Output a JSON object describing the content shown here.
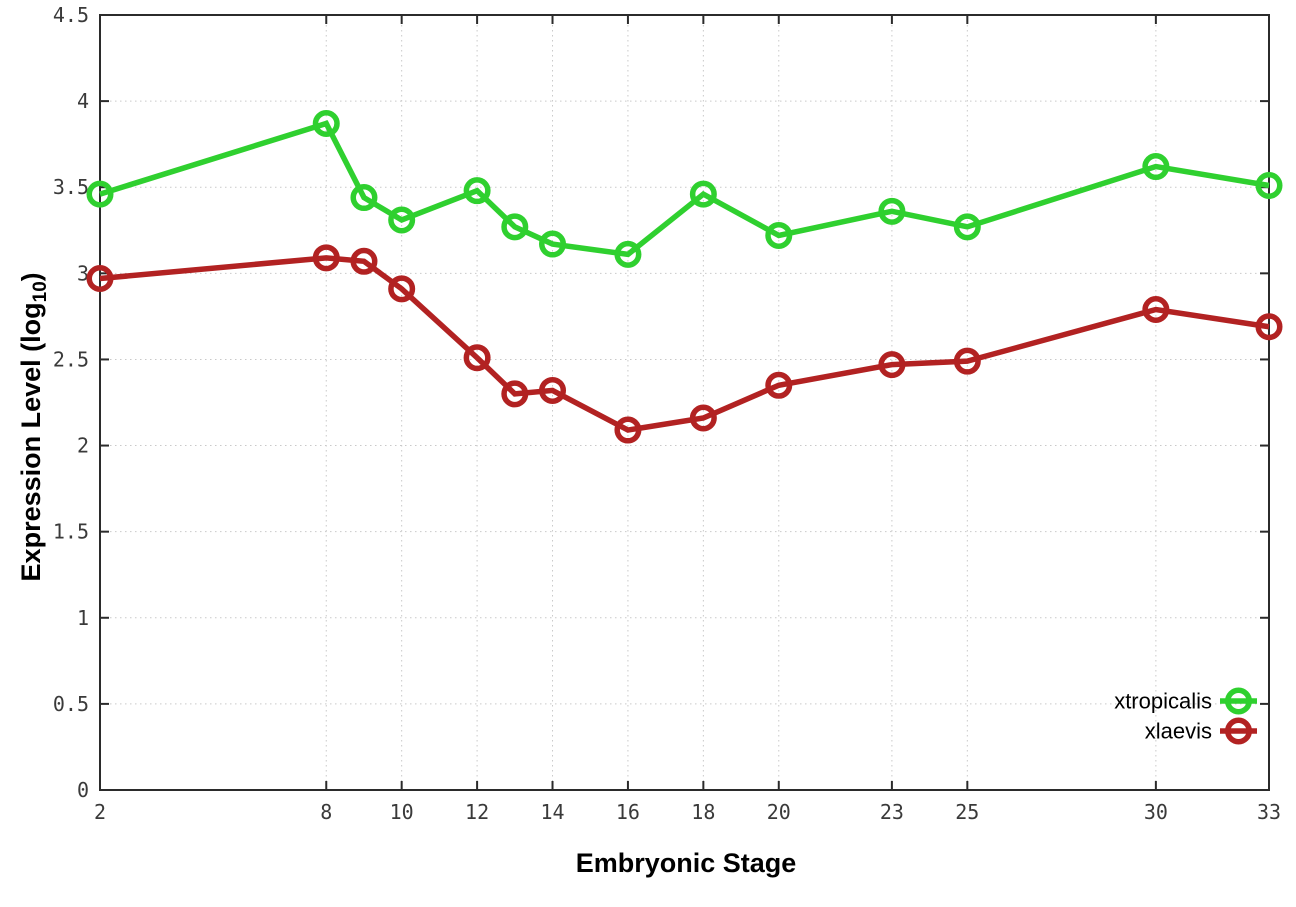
{
  "chart_data": {
    "type": "line",
    "title": "",
    "xlabel": "Embryonic Stage",
    "ylabel": {
      "prefix": "Expression Level (log",
      "sub": "10",
      "suffix": ")"
    },
    "x": [
      2,
      8,
      9,
      10,
      12,
      13,
      14,
      16,
      18,
      20,
      23,
      25,
      30,
      33
    ],
    "series": [
      {
        "name": "xtropicalis",
        "color": "#2fd02f",
        "marker": "open-circle",
        "values": [
          3.46,
          3.87,
          3.44,
          3.31,
          3.48,
          3.27,
          3.17,
          3.11,
          3.46,
          3.22,
          3.36,
          3.27,
          3.62,
          3.51
        ]
      },
      {
        "name": "xlaevis",
        "color": "#b22222",
        "marker": "open-circle",
        "values": [
          2.97,
          3.09,
          3.07,
          2.91,
          2.51,
          2.3,
          2.32,
          2.09,
          2.16,
          2.35,
          2.47,
          2.49,
          2.79,
          2.69
        ]
      }
    ],
    "xticks": {
      "values": [
        2,
        8,
        10,
        12,
        14,
        16,
        18,
        20,
        23,
        25,
        30,
        33
      ],
      "labels": [
        "2",
        "8",
        "10",
        "12",
        "14",
        "16",
        "18",
        "20",
        "23",
        "25",
        "30",
        "33"
      ]
    },
    "yticks": {
      "values": [
        0,
        0.5,
        1,
        1.5,
        2,
        2.5,
        3,
        3.5,
        4,
        4.5
      ],
      "labels": [
        "0",
        "0.5",
        "1",
        "1.5",
        "2",
        "2.5",
        "3",
        "3.5",
        "4",
        "4.5"
      ]
    },
    "xlim": [
      2,
      33
    ],
    "ylim": [
      0,
      4.5
    ],
    "grid": true,
    "grid_style": "dotted",
    "legend_position": "inside-bottom-right",
    "colors": {
      "background": "#ffffff",
      "grid": "#c9c9c9",
      "border": "#2b2b2b",
      "tick_label": "#3a3a3a",
      "title": "#000000"
    }
  }
}
